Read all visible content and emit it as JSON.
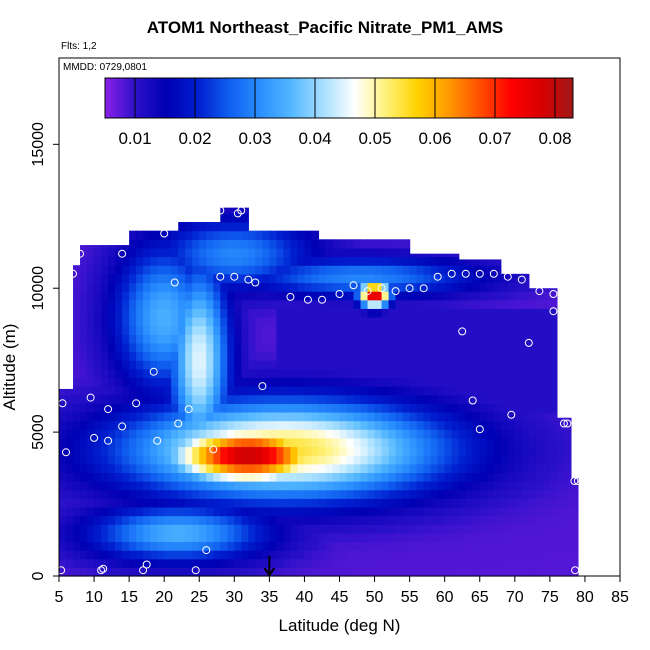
{
  "title": "ATOM1 Northeast_Pacific Nitrate_PM1_AMS",
  "flights_label": "Flts: 1,2",
  "mmdd_label": "MMDD: 0729,0801",
  "chart_data": {
    "type": "heatmap",
    "title": "ATOM1 Northeast_Pacific Nitrate_PM1_AMS",
    "xlabel": "Latitude (deg N)",
    "ylabel": "Altitude (m)",
    "xlim": [
      5,
      85
    ],
    "ylim": [
      0,
      18000
    ],
    "x_ticks": [
      5,
      10,
      15,
      20,
      25,
      30,
      35,
      40,
      45,
      50,
      55,
      60,
      65,
      70,
      75,
      80,
      85
    ],
    "y_ticks": [
      0,
      5000,
      10000,
      15000
    ],
    "grid": false,
    "colorbar": {
      "ticks": [
        0.01,
        0.02,
        0.03,
        0.04,
        0.05,
        0.06,
        0.07,
        0.08
      ],
      "range": [
        0.005,
        0.083
      ],
      "colors": [
        "#8b20e8",
        "#2a10c8",
        "#0000b4",
        "#0020d0",
        "#1060f0",
        "#2a90ff",
        "#55b8ff",
        "#a8e0ff",
        "#ffffff",
        "#fff27a",
        "#ffd200",
        "#ff9a00",
        "#ff5000",
        "#ff0000",
        "#d80000",
        "#a01818"
      ]
    },
    "marker": {
      "type": "arrow",
      "latitude": 35,
      "altitude": 0
    },
    "features": [
      {
        "lat": 32,
        "alt": 4200,
        "value": 0.08,
        "wlat": 8,
        "walt": 700
      },
      {
        "lat": 37,
        "alt": 4400,
        "value": 0.055,
        "wlat": 16,
        "walt": 1200
      },
      {
        "lat": 25,
        "alt": 7500,
        "value": 0.045,
        "wlat": 3,
        "walt": 2400
      },
      {
        "lat": 20,
        "alt": 9000,
        "value": 0.035,
        "wlat": 5,
        "walt": 1800
      },
      {
        "lat": 30,
        "alt": 11200,
        "value": 0.03,
        "wlat": 8,
        "walt": 900
      },
      {
        "lat": 50,
        "alt": 9800,
        "value": 0.08,
        "wlat": 1.5,
        "walt": 300
      },
      {
        "lat": 48,
        "alt": 10400,
        "value": 0.03,
        "wlat": 12,
        "walt": 500
      },
      {
        "lat": 22,
        "alt": 1500,
        "value": 0.035,
        "wlat": 9,
        "walt": 700
      }
    ],
    "observations": [
      {
        "lat": 5.3,
        "alt": 200
      },
      {
        "lat": 11,
        "alt": 200
      },
      {
        "lat": 11.3,
        "alt": 250
      },
      {
        "lat": 17,
        "alt": 200
      },
      {
        "lat": 17.5,
        "alt": 400
      },
      {
        "lat": 24.5,
        "alt": 200
      },
      {
        "lat": 26,
        "alt": 900
      },
      {
        "lat": 78.6,
        "alt": 200
      },
      {
        "lat": 6,
        "alt": 4300
      },
      {
        "lat": 10,
        "alt": 4800
      },
      {
        "lat": 12,
        "alt": 4700
      },
      {
        "lat": 14,
        "alt": 5200
      },
      {
        "lat": 19,
        "alt": 4700
      },
      {
        "lat": 22,
        "alt": 5300
      },
      {
        "lat": 27,
        "alt": 4400
      },
      {
        "lat": 5.5,
        "alt": 6000
      },
      {
        "lat": 9.5,
        "alt": 6200
      },
      {
        "lat": 12,
        "alt": 5800
      },
      {
        "lat": 16,
        "alt": 6000
      },
      {
        "lat": 23.5,
        "alt": 5800
      },
      {
        "lat": 34,
        "alt": 6600
      },
      {
        "lat": 18.5,
        "alt": 7100
      },
      {
        "lat": 64,
        "alt": 6100
      },
      {
        "lat": 65,
        "alt": 5100
      },
      {
        "lat": 69.5,
        "alt": 5600
      },
      {
        "lat": 77,
        "alt": 5300
      },
      {
        "lat": 77.5,
        "alt": 5300
      },
      {
        "lat": 78.5,
        "alt": 3300
      },
      {
        "lat": 79,
        "alt": 3300
      },
      {
        "lat": 62.5,
        "alt": 8500
      },
      {
        "lat": 72,
        "alt": 8100
      },
      {
        "lat": 75.5,
        "alt": 9200
      },
      {
        "lat": 75.5,
        "alt": 9800
      },
      {
        "lat": 73.5,
        "alt": 9900
      },
      {
        "lat": 38,
        "alt": 9700
      },
      {
        "lat": 40.5,
        "alt": 9600
      },
      {
        "lat": 42.5,
        "alt": 9600
      },
      {
        "lat": 45,
        "alt": 9800
      },
      {
        "lat": 47,
        "alt": 10100
      },
      {
        "lat": 49,
        "alt": 9900
      },
      {
        "lat": 51,
        "alt": 10000
      },
      {
        "lat": 53,
        "alt": 9900
      },
      {
        "lat": 55,
        "alt": 10000
      },
      {
        "lat": 57,
        "alt": 10000
      },
      {
        "lat": 59,
        "alt": 10400
      },
      {
        "lat": 61,
        "alt": 10500
      },
      {
        "lat": 63,
        "alt": 10500
      },
      {
        "lat": 65,
        "alt": 10500
      },
      {
        "lat": 67,
        "alt": 10500
      },
      {
        "lat": 69,
        "alt": 10400
      },
      {
        "lat": 71,
        "alt": 10300
      },
      {
        "lat": 7,
        "alt": 10500
      },
      {
        "lat": 8,
        "alt": 11200
      },
      {
        "lat": 14,
        "alt": 11200
      },
      {
        "lat": 21.5,
        "alt": 10200
      },
      {
        "lat": 28,
        "alt": 10400
      },
      {
        "lat": 30,
        "alt": 10400
      },
      {
        "lat": 32,
        "alt": 10300
      },
      {
        "lat": 33,
        "alt": 10200
      },
      {
        "lat": 20,
        "alt": 11900
      },
      {
        "lat": 28,
        "alt": 12700
      },
      {
        "lat": 31,
        "alt": 12700
      },
      {
        "lat": 30.5,
        "alt": 12600
      }
    ]
  }
}
